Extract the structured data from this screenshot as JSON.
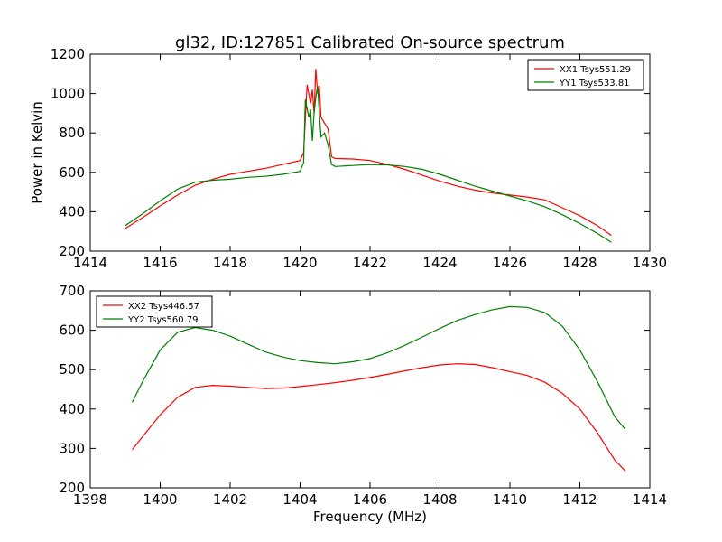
{
  "figure": {
    "title": "gl32, ID:127851 Calibrated On-source spectrum",
    "xlabel": "Frequency (MHz)",
    "ylabel": "Power in Kelvin"
  },
  "chart_data": [
    {
      "type": "line",
      "xlim": [
        1414,
        1430
      ],
      "ylim": [
        200,
        1200
      ],
      "x_ticks": [
        "1414",
        "1416",
        "1418",
        "1420",
        "1422",
        "1424",
        "1426",
        "1428",
        "1430"
      ],
      "y_ticks": [
        "200",
        "400",
        "600",
        "800",
        "1000",
        "1200"
      ],
      "legend_position": "top-right",
      "grid": false,
      "series": [
        {
          "name": "XX1 Tsys551.29",
          "color": "#ff0000",
          "points": [
            [
              1415,
              315
            ],
            [
              1415.5,
              370
            ],
            [
              1416,
              430
            ],
            [
              1416.5,
              485
            ],
            [
              1417,
              535
            ],
            [
              1417.5,
              565
            ],
            [
              1418,
              590
            ],
            [
              1418.5,
              605
            ],
            [
              1419,
              620
            ],
            [
              1419.5,
              640
            ],
            [
              1420,
              660
            ],
            [
              1420.1,
              700
            ],
            [
              1420.2,
              1045
            ],
            [
              1420.3,
              950
            ],
            [
              1420.35,
              1020
            ],
            [
              1420.4,
              900
            ],
            [
              1420.45,
              1125
            ],
            [
              1420.5,
              1000
            ],
            [
              1420.55,
              1040
            ],
            [
              1420.6,
              880
            ],
            [
              1420.7,
              850
            ],
            [
              1420.8,
              820
            ],
            [
              1420.9,
              680
            ],
            [
              1421,
              670
            ],
            [
              1421.5,
              668
            ],
            [
              1422,
              660
            ],
            [
              1422.5,
              640
            ],
            [
              1423,
              615
            ],
            [
              1423.5,
              585
            ],
            [
              1424,
              555
            ],
            [
              1424.5,
              530
            ],
            [
              1425,
              510
            ],
            [
              1425.5,
              495
            ],
            [
              1426,
              485
            ],
            [
              1426.5,
              475
            ],
            [
              1427,
              460
            ],
            [
              1427.5,
              420
            ],
            [
              1428,
              380
            ],
            [
              1428.5,
              330
            ],
            [
              1428.9,
              280
            ]
          ]
        },
        {
          "name": "YY1 Tsys533.81",
          "color": "#008000",
          "points": [
            [
              1415,
              330
            ],
            [
              1415.5,
              390
            ],
            [
              1416,
              455
            ],
            [
              1416.5,
              515
            ],
            [
              1417,
              550
            ],
            [
              1417.5,
              560
            ],
            [
              1418,
              565
            ],
            [
              1418.5,
              575
            ],
            [
              1419,
              580
            ],
            [
              1419.5,
              590
            ],
            [
              1420,
              605
            ],
            [
              1420.1,
              650
            ],
            [
              1420.15,
              970
            ],
            [
              1420.25,
              880
            ],
            [
              1420.3,
              920
            ],
            [
              1420.35,
              760
            ],
            [
              1420.4,
              900
            ],
            [
              1420.45,
              980
            ],
            [
              1420.5,
              1040
            ],
            [
              1420.55,
              900
            ],
            [
              1420.6,
              780
            ],
            [
              1420.7,
              800
            ],
            [
              1420.8,
              740
            ],
            [
              1420.9,
              640
            ],
            [
              1421,
              630
            ],
            [
              1421.5,
              635
            ],
            [
              1422,
              640
            ],
            [
              1422.5,
              638
            ],
            [
              1423,
              630
            ],
            [
              1423.5,
              615
            ],
            [
              1424,
              590
            ],
            [
              1424.5,
              560
            ],
            [
              1425,
              530
            ],
            [
              1425.5,
              505
            ],
            [
              1426,
              480
            ],
            [
              1426.5,
              455
            ],
            [
              1427,
              425
            ],
            [
              1427.5,
              385
            ],
            [
              1428,
              340
            ],
            [
              1428.5,
              290
            ],
            [
              1428.9,
              245
            ]
          ]
        }
      ]
    },
    {
      "type": "line",
      "xlim": [
        1398,
        1414
      ],
      "ylim": [
        200,
        700
      ],
      "x_ticks": [
        "1398",
        "1400",
        "1402",
        "1404",
        "1406",
        "1408",
        "1410",
        "1412",
        "1414"
      ],
      "y_ticks": [
        "200",
        "300",
        "400",
        "500",
        "600",
        "700"
      ],
      "legend_position": "top-left",
      "grid": false,
      "series": [
        {
          "name": "XX2 Tsys446.57",
          "color": "#ff0000",
          "points": [
            [
              1399.2,
              297
            ],
            [
              1399.5,
              330
            ],
            [
              1400,
              385
            ],
            [
              1400.5,
              430
            ],
            [
              1401,
              455
            ],
            [
              1401.5,
              460
            ],
            [
              1402,
              458
            ],
            [
              1402.5,
              455
            ],
            [
              1403,
              452
            ],
            [
              1403.5,
              453
            ],
            [
              1404,
              457
            ],
            [
              1404.5,
              462
            ],
            [
              1405,
              467
            ],
            [
              1405.5,
              473
            ],
            [
              1406,
              480
            ],
            [
              1406.5,
              488
            ],
            [
              1407,
              497
            ],
            [
              1407.5,
              505
            ],
            [
              1408,
              512
            ],
            [
              1408.5,
              515
            ],
            [
              1409,
              513
            ],
            [
              1409.5,
              505
            ],
            [
              1410,
              495
            ],
            [
              1410.5,
              485
            ],
            [
              1411,
              468
            ],
            [
              1411.5,
              440
            ],
            [
              1412,
              400
            ],
            [
              1412.5,
              340
            ],
            [
              1413,
              270
            ],
            [
              1413.3,
              243
            ]
          ]
        },
        {
          "name": "YY2 Tsys560.79",
          "color": "#008000",
          "points": [
            [
              1399.2,
              417
            ],
            [
              1399.5,
              470
            ],
            [
              1400,
              550
            ],
            [
              1400.5,
              595
            ],
            [
              1401,
              607
            ],
            [
              1401.5,
              600
            ],
            [
              1402,
              585
            ],
            [
              1402.5,
              565
            ],
            [
              1403,
              545
            ],
            [
              1403.5,
              532
            ],
            [
              1404,
              523
            ],
            [
              1404.5,
              518
            ],
            [
              1405,
              515
            ],
            [
              1405.5,
              520
            ],
            [
              1406,
              528
            ],
            [
              1406.5,
              543
            ],
            [
              1407,
              562
            ],
            [
              1407.5,
              583
            ],
            [
              1408,
              605
            ],
            [
              1408.5,
              625
            ],
            [
              1409,
              640
            ],
            [
              1409.5,
              652
            ],
            [
              1410,
              660
            ],
            [
              1410.5,
              658
            ],
            [
              1411,
              645
            ],
            [
              1411.5,
              610
            ],
            [
              1412,
              550
            ],
            [
              1412.5,
              470
            ],
            [
              1413,
              380
            ],
            [
              1413.3,
              348
            ]
          ]
        }
      ]
    }
  ]
}
